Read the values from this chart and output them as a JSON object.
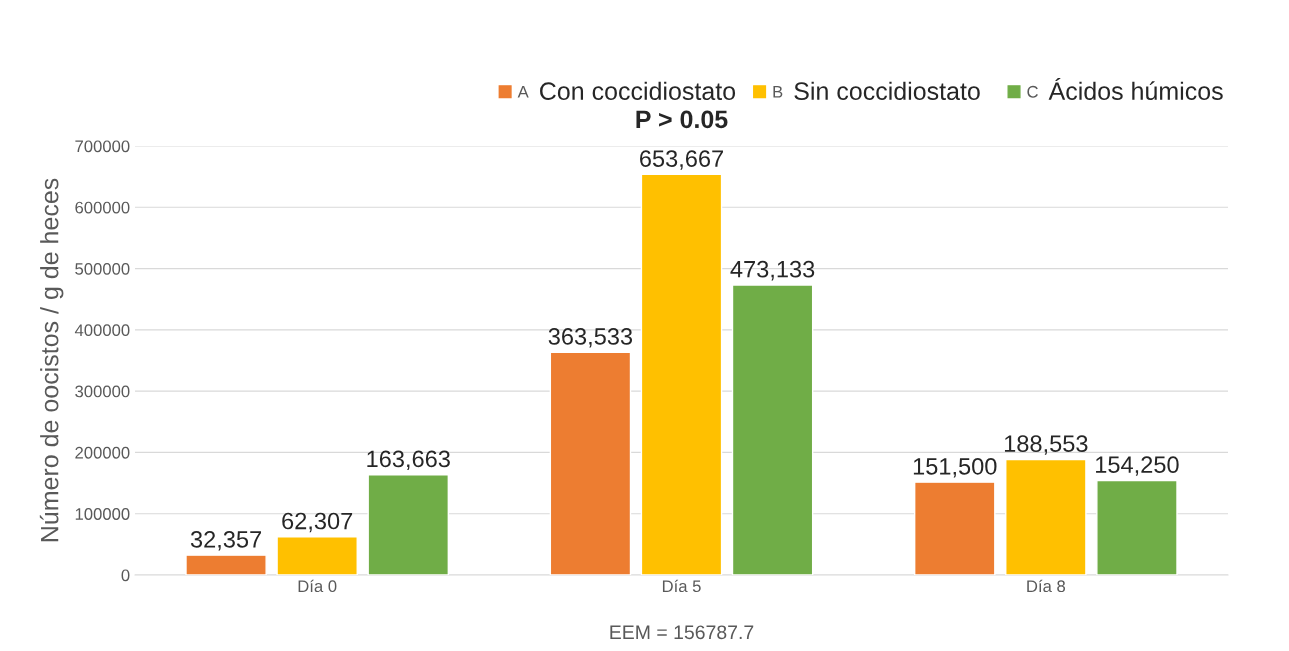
{
  "chart_data": {
    "type": "bar",
    "ylabel": "Número de oocistos / g de heces",
    "categories": [
      "Día 0",
      "Día 5",
      "Día 8"
    ],
    "series": [
      {
        "name": "A",
        "color": "#ed7d31",
        "values": [
          32357,
          363533,
          151500
        ],
        "value_labels": [
          "32,357",
          "363,533",
          "151,500"
        ]
      },
      {
        "name": "B",
        "color": "#ffc000",
        "values": [
          62307,
          653667,
          188553
        ],
        "value_labels": [
          "62,307",
          "653,667",
          "188,553"
        ]
      },
      {
        "name": "C",
        "color": "#70ad47",
        "values": [
          163663,
          473133,
          154250
        ],
        "value_labels": [
          "163,663",
          "473,133",
          "154,250"
        ]
      }
    ],
    "annotations": [
      "Con coccidiostato",
      "Sin coccidiostato",
      "Ácidos húmicos",
      "P > 0.05",
      "EEM = 156787.7"
    ],
    "ylim": [
      0,
      700000
    ],
    "yticks": [
      0,
      100000,
      200000,
      300000,
      400000,
      500000,
      600000,
      700000
    ],
    "grid": "y",
    "legend": "top"
  }
}
